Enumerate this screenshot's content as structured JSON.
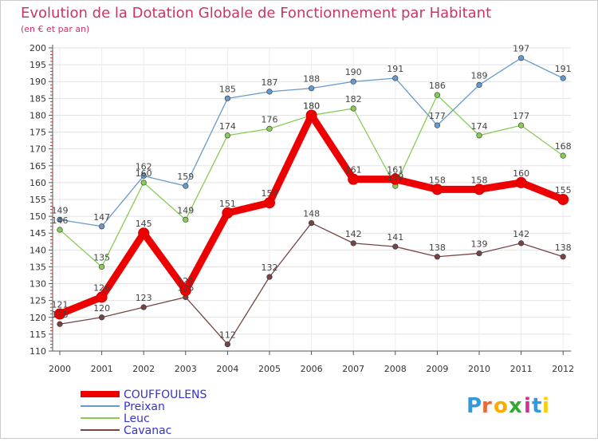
{
  "chart_data": {
    "type": "line",
    "title": "Evolution de la Dotation Globale de Fonctionnement par Habitant",
    "subtitle": "(en € et par an)",
    "xlabel": "",
    "ylabel": "",
    "categories": [
      "2000",
      "2001",
      "2002",
      "2003",
      "2004",
      "2005",
      "2006",
      "2007",
      "2008",
      "2009",
      "2010",
      "2011",
      "2012"
    ],
    "ylim": [
      110,
      200
    ],
    "yticks": [
      110,
      115,
      120,
      125,
      130,
      135,
      140,
      145,
      150,
      155,
      160,
      165,
      170,
      175,
      180,
      185,
      190,
      195,
      200
    ],
    "grid": true,
    "legend_position": "bottom-left",
    "series": [
      {
        "name": "COUFFOULENS",
        "color": "#ee0000",
        "values": [
          121,
          126,
          145,
          128,
          151,
          154,
          180,
          161,
          161,
          158,
          158,
          160,
          155
        ]
      },
      {
        "name": "Preixan",
        "color": "#6699cc",
        "values": [
          149,
          147,
          162,
          159,
          185,
          187,
          188,
          190,
          191,
          177,
          189,
          197,
          191
        ]
      },
      {
        "name": "Leuc",
        "color": "#88cc55",
        "values": [
          146,
          135,
          160,
          149,
          174,
          176,
          180,
          182,
          159,
          186,
          174,
          177,
          168
        ]
      },
      {
        "name": "Cavanac",
        "color": "#774444",
        "values": [
          118,
          120,
          123,
          126,
          112,
          132,
          148,
          142,
          141,
          138,
          139,
          142,
          138
        ]
      }
    ]
  },
  "legend_text_color": "#3333cc",
  "title_color": "#cc3366",
  "logo": {
    "text": "Proxiti",
    "colors": [
      "#3399dd",
      "#ee6633",
      "#ffaa00",
      "#33aa33",
      "#cc3399",
      "#3399dd",
      "#ffcc00"
    ]
  }
}
